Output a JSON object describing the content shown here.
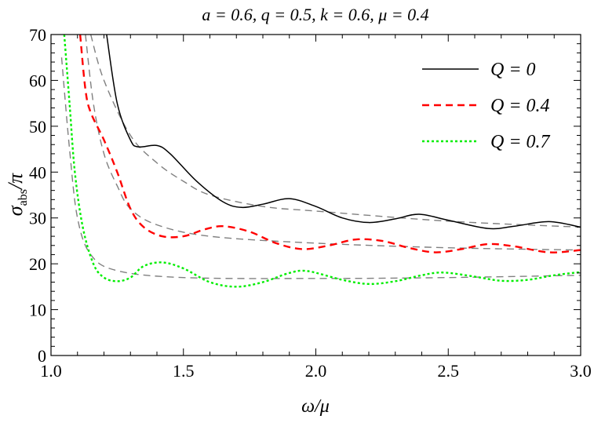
{
  "chart_data": {
    "type": "line",
    "title": "a = 0.6, q = 0.5, k = 0.6, μ = 0.4",
    "xlabel": "ω/μ",
    "ylabel": "σ_abs/π",
    "ylabel_main": "σ",
    "ylabel_sub": "abs",
    "ylabel_tail": "/π",
    "xlim": [
      1.0,
      3.0
    ],
    "ylim": [
      0,
      70
    ],
    "xticks": [
      "1.0",
      "1.5",
      "2.0",
      "2.5",
      "3.0"
    ],
    "xtick_values": [
      1.0,
      1.5,
      2.0,
      2.5,
      3.0
    ],
    "yticks": [
      "0",
      "10",
      "20",
      "30",
      "40",
      "50",
      "60",
      "70"
    ],
    "ytick_values": [
      0,
      10,
      20,
      30,
      40,
      50,
      60,
      70
    ],
    "grid": false,
    "legend_position": "top-right",
    "series": [
      {
        "name": "Q = 0",
        "color": "#000000",
        "dash": "solid",
        "x": [
          1.21,
          1.25,
          1.3,
          1.33,
          1.4,
          1.45,
          1.55,
          1.65,
          1.72,
          1.8,
          1.9,
          2.0,
          2.1,
          2.2,
          2.3,
          2.39,
          2.5,
          2.65,
          2.75,
          2.88,
          3.0
        ],
        "y": [
          70,
          55,
          47,
          45.5,
          45.8,
          44,
          38,
          33.5,
          32.3,
          33,
          34.2,
          32.5,
          30,
          29,
          29.8,
          30.8,
          29.5,
          27.7,
          28.2,
          29.2,
          28
        ]
      },
      {
        "name": "Q = 0.4",
        "color": "#ff0000",
        "dash": "dashed",
        "x": [
          1.11,
          1.13,
          1.15,
          1.2,
          1.25,
          1.3,
          1.35,
          1.42,
          1.5,
          1.58,
          1.65,
          1.75,
          1.85,
          1.95,
          2.05,
          2.15,
          2.25,
          2.35,
          2.45,
          2.55,
          2.65,
          2.75,
          2.88,
          3.0
        ],
        "y": [
          70,
          58,
          53,
          47,
          40,
          32,
          28,
          26,
          26,
          27.5,
          28.2,
          27,
          24.5,
          23.2,
          24,
          25.3,
          25,
          23.5,
          22.5,
          23.2,
          24.3,
          23.8,
          22.5,
          23
        ]
      },
      {
        "name": "Q = 0.7",
        "color": "#00ee00",
        "dash": "dotted",
        "x": [
          1.05,
          1.07,
          1.09,
          1.12,
          1.16,
          1.2,
          1.25,
          1.3,
          1.35,
          1.42,
          1.5,
          1.6,
          1.7,
          1.8,
          1.9,
          1.97,
          2.1,
          2.2,
          2.3,
          2.4,
          2.48,
          2.6,
          2.7,
          2.8,
          2.9,
          3.0
        ],
        "y": [
          70,
          55,
          40,
          28,
          20,
          17,
          16.2,
          17,
          19.5,
          20.3,
          19,
          16,
          15,
          16,
          18,
          18.4,
          16.5,
          15.6,
          16.2,
          17.5,
          18.1,
          17.2,
          16.3,
          16.5,
          17.5,
          18.2
        ]
      }
    ],
    "reference_curves": [
      {
        "name": "approx-Q0",
        "color": "#808080",
        "x": [
          1.15,
          1.2,
          1.3,
          1.4,
          1.5,
          1.6,
          1.8,
          2.0,
          2.5,
          3.0
        ],
        "y": [
          70,
          60,
          48,
          42,
          38,
          35,
          32.5,
          31.5,
          29.3,
          28
        ]
      },
      {
        "name": "approx-Q0.4",
        "color": "#808080",
        "x": [
          1.13,
          1.16,
          1.2,
          1.25,
          1.3,
          1.4,
          1.6,
          2.0,
          2.5,
          3.0
        ],
        "y": [
          70,
          55,
          44,
          37,
          32,
          28.5,
          26,
          24.5,
          23.5,
          23
        ]
      },
      {
        "name": "approx-Q0.7",
        "color": "#808080",
        "x": [
          1.04,
          1.07,
          1.1,
          1.15,
          1.25,
          1.5,
          2.0,
          2.5,
          3.0
        ],
        "y": [
          65,
          45,
          30,
          22,
          18.5,
          17,
          16.8,
          17,
          17.5
        ]
      }
    ]
  }
}
